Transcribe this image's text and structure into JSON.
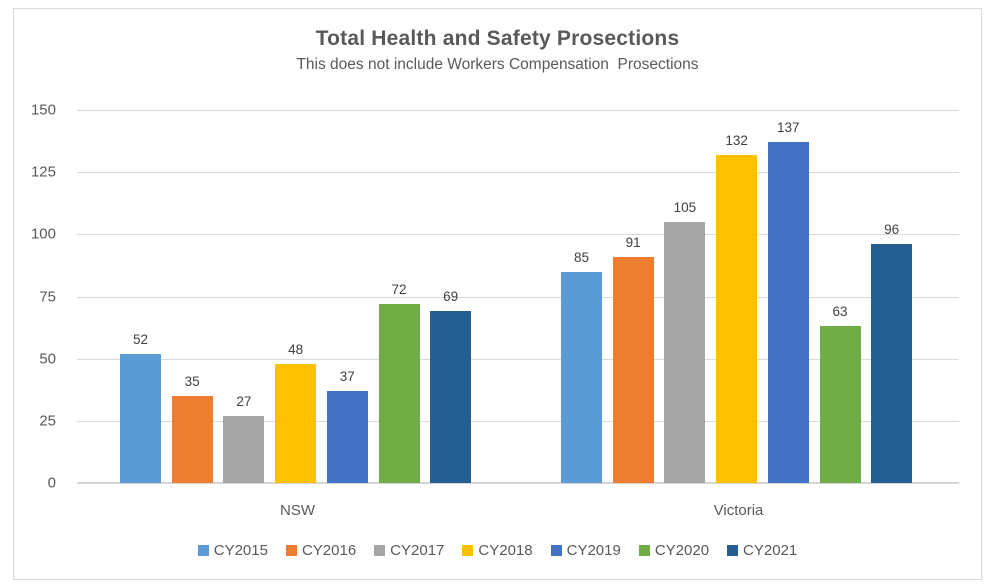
{
  "title": "Total Health and Safety Prosections",
  "subtitle": "This does not include Workers Compensation  Prosections",
  "chart_data": {
    "type": "bar",
    "title": "Total Health and Safety Prosections",
    "subtitle": "This does not include Workers Compensation  Prosections",
    "categories": [
      "NSW",
      "Victoria"
    ],
    "series": [
      {
        "name": "CY2015",
        "color": "#5B9BD5",
        "values": [
          52,
          85
        ]
      },
      {
        "name": "CY2016",
        "color": "#ED7D31",
        "values": [
          35,
          91
        ]
      },
      {
        "name": "CY2017",
        "color": "#A5A5A5",
        "values": [
          27,
          105
        ]
      },
      {
        "name": "CY2018",
        "color": "#FFC000",
        "values": [
          48,
          132
        ]
      },
      {
        "name": "CY2019",
        "color": "#4472C4",
        "values": [
          37,
          137
        ]
      },
      {
        "name": "CY2020",
        "color": "#70AD47",
        "values": [
          72,
          63
        ]
      },
      {
        "name": "CY2021",
        "color": "#255E91",
        "values": [
          69,
          96
        ]
      }
    ],
    "xlabel": "",
    "ylabel": "",
    "ylim": [
      0,
      150
    ],
    "yticks": [
      0,
      25,
      50,
      75,
      100,
      125,
      150
    ],
    "grid": true,
    "data_labels": true,
    "legend_position": "bottom",
    "colors": {
      "text": "#595959",
      "data_label": "#404040",
      "gridline": "#D9D9D9",
      "frame_border": "#D9D9D9",
      "background": "#FFFFFF"
    }
  }
}
